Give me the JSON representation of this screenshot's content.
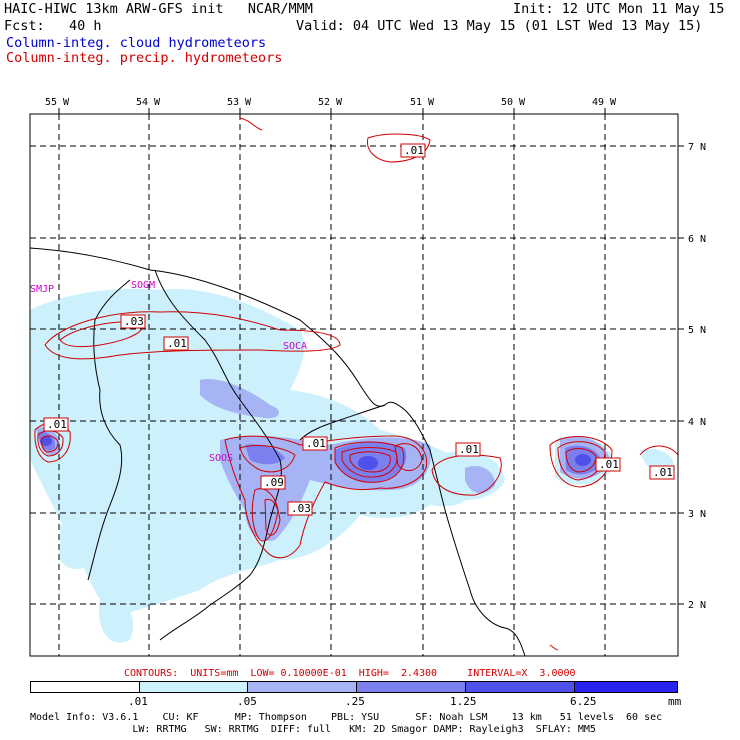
{
  "header": {
    "line1_left": "HAIC-HIWC 13km ARW-GFS init   NCAR/MMM",
    "line1_right": "Init: 12 UTC Mon 11 May 15",
    "line2_left": "Fcst:   40 h",
    "line2_right": "Valid: 04 UTC Wed 13 May 15 (01 LST Wed 13 May 15)",
    "legend_cloud": "Column-integ. cloud hydrometeors",
    "legend_precip": "Column-integ. precip. hydrometeors"
  },
  "colors": {
    "cloud_series": "#0000cc",
    "precip_series": "#d00000",
    "station_label": "#cc00cc",
    "fill_levels": [
      "#ffffff",
      "#ccf0fc",
      "#a6b4f5",
      "#7c80ee",
      "#5050ea",
      "#2a22ee"
    ]
  },
  "map": {
    "lon_labels": [
      "55 W",
      "54 W",
      "53 W",
      "52 W",
      "51 W",
      "50 W",
      "49 W"
    ],
    "lat_labels": [
      "7 N",
      "6 N",
      "5 N",
      "4 N",
      "3 N",
      "2 N"
    ],
    "stations": [
      "SMJP",
      "SOGM",
      "SOCA",
      "SOOS"
    ],
    "contour_labels": [
      ".01",
      ".03",
      ".01",
      ".01",
      ".01",
      ".09",
      ".03",
      ".01",
      ".01",
      ".01"
    ]
  },
  "contours_info": "CONTOURS:  UNITS=mm  LOW= 0.10000E-01  HIGH=  2.4300     INTERVAL=X  3.0000",
  "colorbar": {
    "tick_labels": [
      ".01",
      ".05",
      ".25",
      "1.25",
      "6.25"
    ],
    "units": "mm"
  },
  "footer": {
    "line1": "Model Info: V3.6.1    CU: KF      MP: Thompson    PBL: YSU      SF: Noah LSM    13 km   51 levels  60 sec",
    "line2": "                 LW: RRTMG   SW: RRTMG  DIFF: full   KM: 2D Smagor DAMP: Rayleigh3  SFLAY: MM5"
  }
}
